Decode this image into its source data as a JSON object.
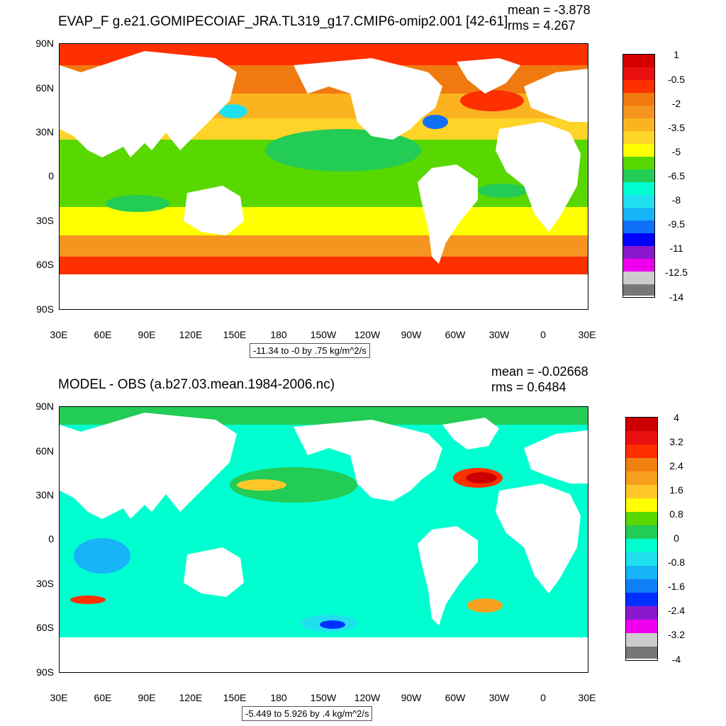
{
  "panels": [
    {
      "title": "EVAP_F g.e21.GOMIPECOIAF_JRA.TL319_g17.CMIP6-omip2.001 [42-61]",
      "mean": "mean = -3.878",
      "rms": "rms = 4.267",
      "info": "-11.34 to -0 by .75 kg/m^2/s",
      "legend": {
        "colors": [
          "#d40000",
          "#ea1010",
          "#ff3000",
          "#f07a10",
          "#f5941e",
          "#fbb420",
          "#ffd428",
          "#ffff00",
          "#58d800",
          "#22cc55",
          "#00ffd0",
          "#20e0f0",
          "#18b4f8",
          "#1070f8",
          "#0000ff",
          "#8a18cc",
          "#ee00ee",
          "#cccccc",
          "#777777"
        ],
        "labels": [
          "1",
          "-0.5",
          "-2",
          "-3.5",
          "-5",
          "-6.5",
          "-8",
          "-9.5",
          "-11",
          "-12.5",
          "-14"
        ]
      }
    },
    {
      "title": "MODEL - OBS (a.b27.03.mean.1984-2006.nc)",
      "mean": "mean = -0.02668",
      "rms": "rms = 0.6484",
      "info": "-5.449 to 5.926 by .4 kg/m^2/s",
      "legend": {
        "colors": [
          "#cc0000",
          "#e81010",
          "#ff3000",
          "#f08010",
          "#f7a020",
          "#ffc828",
          "#ffff00",
          "#58d800",
          "#22cc55",
          "#00ffd0",
          "#20e0f0",
          "#18b4f8",
          "#1080f8",
          "#0030ff",
          "#8a18cc",
          "#ee00ee",
          "#cccccc",
          "#777777"
        ],
        "labels": [
          "4",
          "3.2",
          "2.4",
          "1.6",
          "0.8",
          "0",
          "-0.8",
          "-1.6",
          "-2.4",
          "-3.2",
          "-4"
        ]
      }
    }
  ],
  "axes": {
    "y_ticks": [
      "90N",
      "60N",
      "30N",
      "0",
      "30S",
      "60S",
      "90S"
    ],
    "x_ticks": [
      "30E",
      "60E",
      "90E",
      "120E",
      "150E",
      "180",
      "150W",
      "120W",
      "90W",
      "60W",
      "30W",
      "0",
      "30E"
    ]
  }
}
